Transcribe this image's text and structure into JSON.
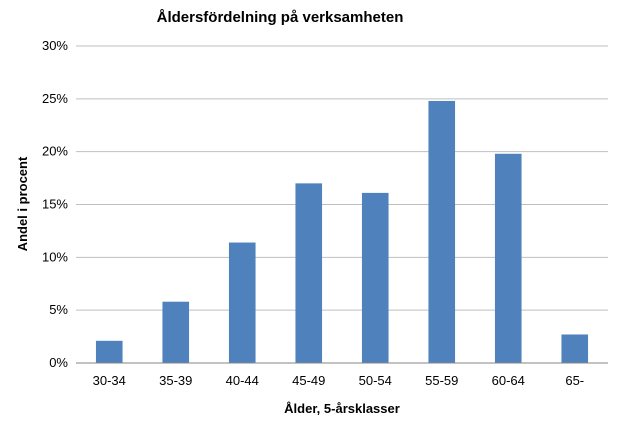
{
  "chart_data": {
    "type": "bar",
    "title": "Åldersfördelning på verksamheten",
    "xlabel": "Ålder, 5-årsklasser",
    "ylabel": "Andel i procent",
    "categories": [
      "30-34",
      "35-39",
      "40-44",
      "45-49",
      "50-54",
      "55-59",
      "60-64",
      "65-"
    ],
    "values": [
      2.1,
      5.8,
      11.4,
      17.0,
      16.1,
      24.8,
      19.8,
      2.7
    ],
    "ylim": [
      0,
      30
    ],
    "yticks": [
      "0%",
      "5%",
      "10%",
      "15%",
      "20%",
      "25%",
      "30%"
    ],
    "grid": true,
    "legend": "none",
    "bar_color": "#4f81bd"
  }
}
